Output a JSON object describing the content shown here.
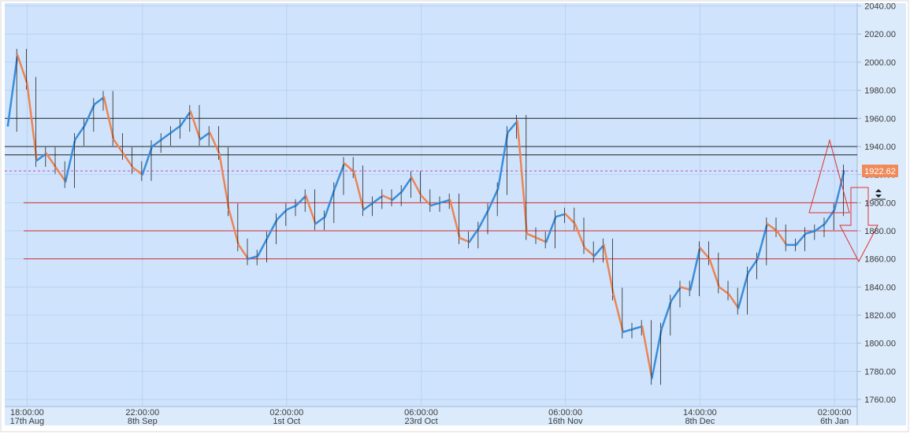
{
  "chart_data": {
    "type": "line",
    "values": [
      1955,
      2005,
      1985,
      1930,
      1935,
      1925,
      1915,
      1945,
      1955,
      1970,
      1975,
      1945,
      1935,
      1925,
      1920,
      1940,
      1945,
      1950,
      1955,
      1965,
      1945,
      1950,
      1935,
      1895,
      1870,
      1860,
      1862,
      1875,
      1888,
      1895,
      1898,
      1905,
      1885,
      1890,
      1910,
      1928,
      1922,
      1895,
      1900,
      1905,
      1902,
      1908,
      1918,
      1905,
      1898,
      1900,
      1902,
      1875,
      1872,
      1882,
      1895,
      1910,
      1950,
      1958,
      1878,
      1875,
      1872,
      1890,
      1892,
      1885,
      1868,
      1862,
      1870,
      1835,
      1808,
      1810,
      1812,
      1775,
      1810,
      1830,
      1840,
      1838,
      1868,
      1860,
      1840,
      1835,
      1825,
      1850,
      1860,
      1885,
      1880,
      1870,
      1870,
      1878,
      1880,
      1885,
      1895,
      1922.62
    ],
    "categories": [
      null,
      null,
      {
        "time": "18:00:00",
        "date": "17th Aug"
      },
      null,
      null,
      null,
      null,
      null,
      null,
      null,
      null,
      null,
      null,
      null,
      {
        "time": "22:00:00",
        "date": "8th Sep"
      },
      null,
      null,
      null,
      null,
      null,
      null,
      null,
      null,
      null,
      null,
      null,
      null,
      null,
      null,
      {
        "time": "02:00:00",
        "date": "1st Oct"
      },
      null,
      null,
      null,
      null,
      null,
      null,
      null,
      null,
      null,
      null,
      null,
      null,
      null,
      {
        "time": "06:00:00",
        "date": "23rd Oct"
      },
      null,
      null,
      null,
      null,
      null,
      null,
      null,
      null,
      null,
      null,
      null,
      null,
      null,
      null,
      {
        "time": "06:00:00",
        "date": "16th Nov"
      },
      null,
      null,
      null,
      null,
      null,
      null,
      null,
      null,
      null,
      null,
      null,
      null,
      null,
      {
        "time": "14:00:00",
        "date": "8th Dec"
      },
      null,
      null,
      null,
      null,
      null,
      null,
      null,
      null,
      null,
      null,
      null,
      null,
      null,
      {
        "time": "02:00:00",
        "date": "6th Jan"
      },
      null
    ],
    "up_color": "#3a8ddb",
    "down_color": "#ec8455",
    "ylim": [
      1755,
      2042
    ],
    "yticks": [
      {
        "value": 1760,
        "label": "1760.00"
      },
      {
        "value": 1780,
        "label": "1780.00"
      },
      {
        "value": 1800,
        "label": "1800.00"
      },
      {
        "value": 1820,
        "label": "1820.00"
      },
      {
        "value": 1840,
        "label": "1840.00"
      },
      {
        "value": 1860,
        "label": "1860.00"
      },
      {
        "value": 1880,
        "label": "1880.00"
      },
      {
        "value": 1900,
        "label": "1900.00"
      },
      {
        "value": 1920,
        "label": "1920.00"
      },
      {
        "value": 1940,
        "label": "1940.00"
      },
      {
        "value": 1960,
        "label": "1960.00"
      },
      {
        "value": 1980,
        "label": "1980.00"
      },
      {
        "value": 2000,
        "label": "2000.00"
      },
      {
        "value": 2020,
        "label": "2020.00"
      },
      {
        "value": 2040,
        "label": "2040.00"
      }
    ],
    "grid": true,
    "horizontal_lines": [
      {
        "value": 1960,
        "color": "#222222"
      },
      {
        "value": 1940,
        "color": "#222222"
      },
      {
        "value": 1934,
        "color": "#222222"
      },
      {
        "value": 1900,
        "color": "#d42a2a"
      },
      {
        "value": 1880,
        "color": "#d42a2a"
      },
      {
        "value": 1860,
        "color": "#d42a2a"
      }
    ],
    "price_line_color": "#d040c0",
    "price_badge_color": "#f08a5a"
  }
}
